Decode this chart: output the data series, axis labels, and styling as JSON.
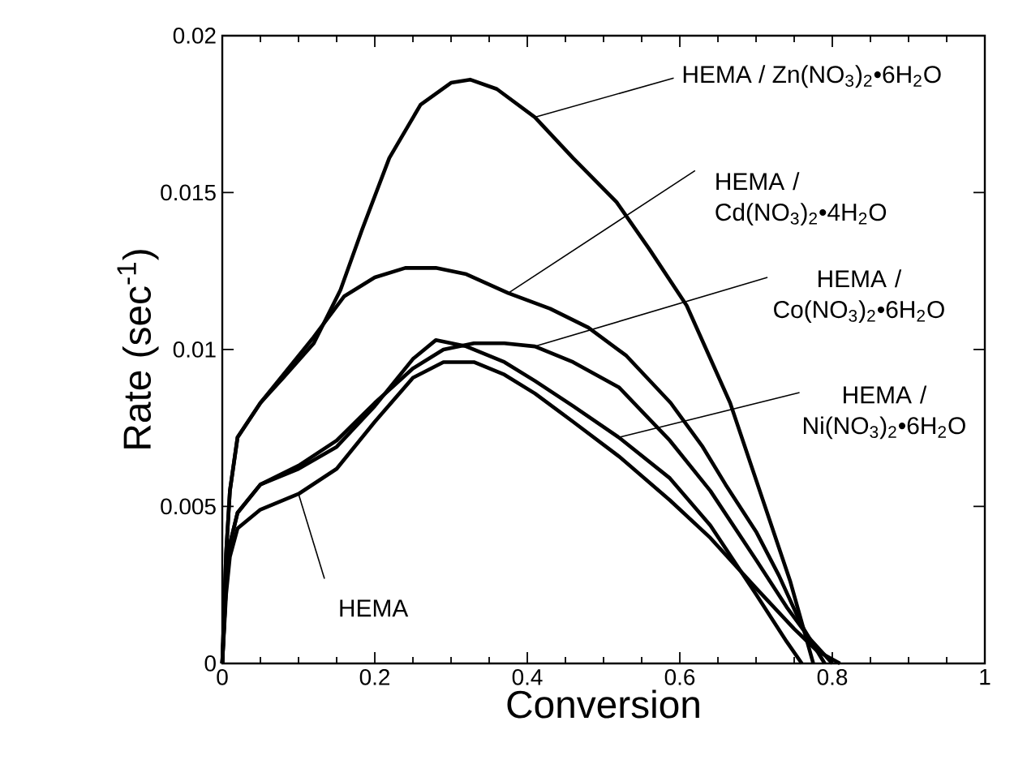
{
  "chart_data": {
    "type": "line",
    "xlabel": "Conversion",
    "ylabel": "Rate (sec$^{-1}$)",
    "xlim": [
      0,
      1
    ],
    "ylim": [
      0,
      0.02
    ],
    "xticks": [
      0,
      0.2,
      0.4,
      0.6,
      0.8,
      1
    ],
    "yticks": [
      0,
      0.005,
      0.01,
      0.015,
      0.02
    ],
    "grid": false,
    "legend": false,
    "marker": "none",
    "line_style": "solid",
    "annotations": [
      {
        "text": "HEMA / Zn(NO$_{3}$)$_{2}$•6H$_{2}$O",
        "x": 0.41,
        "y": 0.0174
      },
      {
        "text": "HEMA / Cd(NO$_{3}$)$_{2}$•4H$_{2}$O",
        "x": 0.375,
        "y": 0.0118
      },
      {
        "text": "HEMA / Co(NO$_{3}$)$_{2}$•6H$_{2}$O",
        "x": 0.41,
        "y": 0.0101
      },
      {
        "text": "HEMA / Ni(NO$_{3}$)$_{2}$•6H$_{2}$O",
        "x": 0.52,
        "y": 0.0072
      },
      {
        "text": "HEMA",
        "x": 0.1,
        "y": 0.0054
      }
    ],
    "series": [
      {
        "color": "#000000",
        "x": [
          0,
          0.005,
          0.01,
          0.02,
          0.05,
          0.08,
          0.12,
          0.155,
          0.183,
          0.219,
          0.26,
          0.3,
          0.325,
          0.36,
          0.41,
          0.46,
          0.517,
          0.56,
          0.609,
          0.666,
          0.709,
          0.745,
          0.775
        ],
        "values": [
          0,
          0.0035,
          0.0055,
          0.0072,
          0.0083,
          0.0091,
          0.0102,
          0.0119,
          0.0138,
          0.0161,
          0.0178,
          0.0185,
          0.0186,
          0.0183,
          0.0174,
          0.0161,
          0.0147,
          0.0132,
          0.0114,
          0.0083,
          0.0052,
          0.0026,
          0
        ]
      },
      {
        "color": "#000000",
        "x": [
          0,
          0.005,
          0.01,
          0.02,
          0.05,
          0.08,
          0.12,
          0.16,
          0.2,
          0.24,
          0.28,
          0.32,
          0.375,
          0.43,
          0.48,
          0.53,
          0.588,
          0.63,
          0.66,
          0.7,
          0.73,
          0.76,
          0.79
        ],
        "values": [
          0,
          0.0035,
          0.0055,
          0.0072,
          0.0083,
          0.0092,
          0.0104,
          0.0117,
          0.0123,
          0.0126,
          0.0126,
          0.0124,
          0.0118,
          0.0113,
          0.0107,
          0.0098,
          0.0083,
          0.0069,
          0.0057,
          0.0042,
          0.0028,
          0.0012,
          0
        ]
      },
      {
        "color": "#000000",
        "x": [
          0,
          0.005,
          0.01,
          0.02,
          0.05,
          0.1,
          0.15,
          0.2,
          0.25,
          0.29,
          0.33,
          0.37,
          0.41,
          0.46,
          0.52,
          0.587,
          0.64,
          0.7,
          0.74,
          0.77,
          0.8
        ],
        "values": [
          0,
          0.0025,
          0.0038,
          0.0048,
          0.0057,
          0.0063,
          0.0071,
          0.0083,
          0.0094,
          0.01,
          0.0102,
          0.0102,
          0.0101,
          0.0096,
          0.0088,
          0.0071,
          0.0055,
          0.0033,
          0.0018,
          0.0008,
          0
        ]
      },
      {
        "color": "#000000",
        "x": [
          0,
          0.005,
          0.01,
          0.02,
          0.05,
          0.1,
          0.15,
          0.2,
          0.25,
          0.28,
          0.32,
          0.37,
          0.41,
          0.46,
          0.52,
          0.587,
          0.64,
          0.7,
          0.74,
          0.76
        ],
        "values": [
          0,
          0.0025,
          0.0038,
          0.0048,
          0.0057,
          0.0062,
          0.0069,
          0.0082,
          0.0097,
          0.0103,
          0.0101,
          0.0096,
          0.009,
          0.0082,
          0.0072,
          0.0059,
          0.0044,
          0.0022,
          0.0007,
          0
        ]
      },
      {
        "color": "#000000",
        "x": [
          0,
          0.005,
          0.01,
          0.02,
          0.05,
          0.1,
          0.15,
          0.2,
          0.25,
          0.29,
          0.33,
          0.37,
          0.41,
          0.46,
          0.52,
          0.587,
          0.64,
          0.7,
          0.75,
          0.78,
          0.81
        ],
        "values": [
          0,
          0.0022,
          0.0034,
          0.0043,
          0.0049,
          0.0054,
          0.0062,
          0.0077,
          0.0091,
          0.0096,
          0.0096,
          0.0092,
          0.0086,
          0.0077,
          0.0066,
          0.0052,
          0.004,
          0.0024,
          0.0011,
          0.0004,
          0
        ]
      }
    ]
  }
}
